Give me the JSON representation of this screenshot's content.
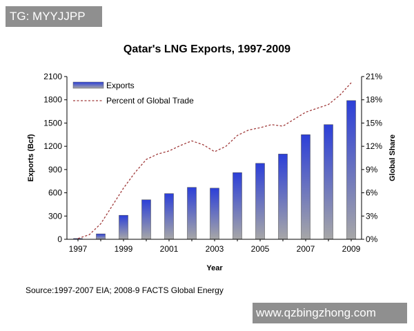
{
  "watermarks": {
    "top_left": "TG: MYYJJPP",
    "bottom_right": "www.qzbingzhong.com"
  },
  "source_note": "Source:1997-2007 EIA; 2008-9 FACTS Global Energy",
  "colors": {
    "bar_top": "#2c3fd8",
    "bar_bottom": "#a7a7a7",
    "line": "#a03a3a",
    "watermark_bg": "#8f8f8f"
  },
  "chart_data": {
    "type": "bar",
    "title": "Qatar's LNG Exports, 1997-2009",
    "xlabel": "Year",
    "ylabel": "Exports (Bcf)",
    "y2label": "Global Share",
    "categories": [
      1997,
      1998,
      1999,
      2000,
      2001,
      2002,
      2003,
      2004,
      2005,
      2006,
      2007,
      2008,
      2009
    ],
    "x_tick_labels": [
      "1997",
      "1999",
      "2001",
      "2003",
      "2005",
      "2007",
      "2009"
    ],
    "ylim": [
      0,
      2100
    ],
    "y_ticks": [
      "0",
      "300",
      "600",
      "900",
      "1200",
      "1500",
      "1800",
      "2100"
    ],
    "y2lim": [
      0,
      21
    ],
    "y2_ticks": [
      "0%",
      "3%",
      "6%",
      "9%",
      "12%",
      "15%",
      "18%",
      "21%"
    ],
    "legend": [
      "Exports",
      "Percent of Global Trade"
    ],
    "legend_position": "top-left",
    "series": [
      {
        "name": "Exports",
        "kind": "bar",
        "axis": "left",
        "values": [
          10,
          70,
          310,
          510,
          590,
          670,
          660,
          860,
          980,
          1100,
          1350,
          1480,
          1790
        ]
      },
      {
        "name": "Percent of Global Trade",
        "kind": "line",
        "style": "dashed",
        "axis": "right",
        "x": [
          1997,
          1997.5,
          1998,
          1998.5,
          1999,
          1999.5,
          2000,
          2000.5,
          2001,
          2001.5,
          2002,
          2002.5,
          2003,
          2003.5,
          2004,
          2004.5,
          2005,
          2005.5,
          2006,
          2006.5,
          2007,
          2007.5,
          2008,
          2008.5,
          2009
        ],
        "values": [
          0.1,
          0.6,
          2.0,
          4.3,
          6.6,
          8.6,
          10.3,
          11.0,
          11.4,
          12.1,
          12.7,
          12.2,
          11.3,
          12.0,
          13.4,
          14.1,
          14.4,
          14.8,
          14.6,
          15.5,
          16.4,
          16.9,
          17.4,
          18.6,
          20.2
        ]
      }
    ]
  }
}
